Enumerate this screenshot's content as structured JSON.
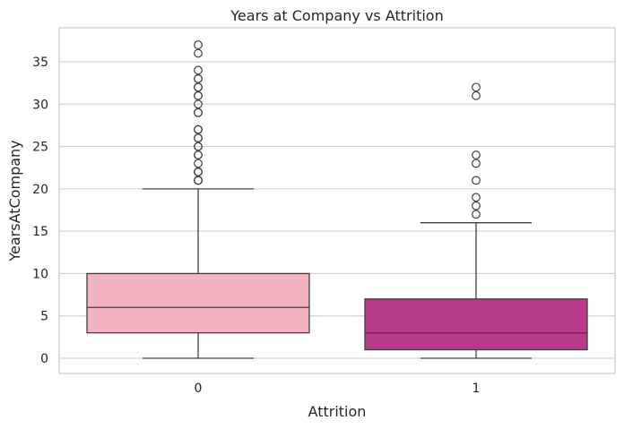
{
  "chart_data": {
    "type": "box",
    "title": "Years at Company vs Attrition",
    "xlabel": "Attrition",
    "ylabel": "YearsAtCompany",
    "categories": [
      "0",
      "1"
    ],
    "ylim": [
      -2,
      39
    ],
    "yticks": [
      0,
      5,
      10,
      15,
      20,
      25,
      30,
      35
    ],
    "grid": true,
    "boxes": [
      {
        "category": "0",
        "color": "#f4b3c0",
        "whisker_low": 0,
        "q1": 3,
        "median": 6,
        "q3": 10,
        "whisker_high": 20,
        "outliers": [
          21,
          21,
          21,
          22,
          22,
          22,
          23,
          24,
          24,
          25,
          25,
          26,
          26,
          27,
          27,
          29,
          29,
          30,
          31,
          31,
          32,
          32,
          33,
          33,
          34,
          36,
          37
        ]
      },
      {
        "category": "1",
        "color": "#b83a8a",
        "whisker_low": 0,
        "q1": 1,
        "median": 3,
        "q3": 7,
        "whisker_high": 16,
        "outliers": [
          17,
          18,
          19,
          21,
          23,
          24,
          31,
          32
        ]
      }
    ]
  }
}
